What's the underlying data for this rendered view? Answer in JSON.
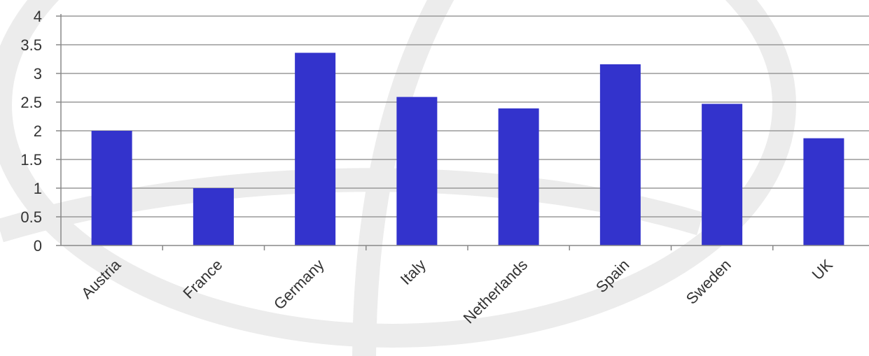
{
  "chart_data": {
    "type": "bar",
    "categories": [
      "Austria",
      "France",
      "Germany",
      "Italy",
      "Netherlands",
      "Spain",
      "Sweden",
      "UK"
    ],
    "values": [
      2.0,
      1.0,
      3.36,
      2.59,
      2.39,
      3.16,
      2.47,
      1.87
    ],
    "ylim": [
      0,
      4
    ],
    "yticks": [
      "0",
      "0.5",
      "1",
      "1.5",
      "2",
      "2.5",
      "3",
      "3.5",
      "4"
    ],
    "grid": true,
    "legend": "none",
    "bar_color": "#3333cc",
    "grid_color": "#9a9a9a",
    "axis_color": "#888888"
  }
}
